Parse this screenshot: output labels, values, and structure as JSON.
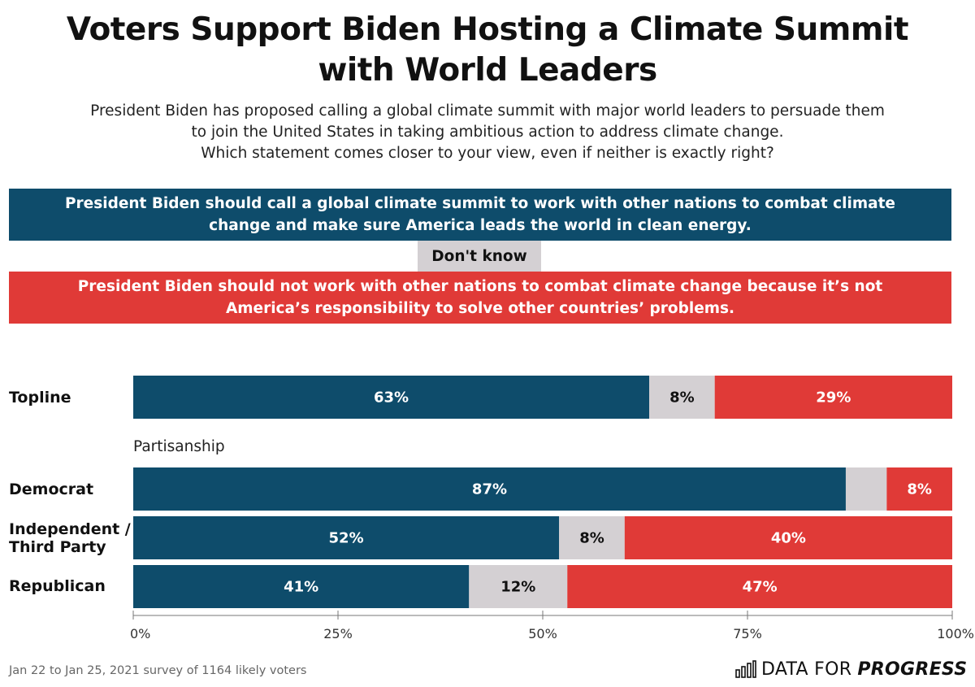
{
  "title": "Voters Support Biden Hosting a Climate Summit with World Leaders",
  "subtitle_lines": [
    "President Biden has proposed calling a global climate summit with major world leaders to persuade them",
    "to join the United States in taking ambitious action to address climate change.",
    "Which statement comes closer to your view, even if neither is exactly right?"
  ],
  "legend": {
    "support": "President Biden should call a global climate summit to work with other nations to combat climate change and make sure America leads the world in clean energy.",
    "dont_know": "Don't know",
    "oppose": "President Biden should not work with other nations to combat climate change because it’s not America’s responsibility to solve other countries’ problems."
  },
  "group_label": "Partisanship",
  "footer": {
    "note": "Jan 22 to Jan 25, 2021 survey of 1164 likely voters",
    "brand_regular": "DATA FOR",
    "brand_bold": "PROGRESS"
  },
  "colors": {
    "support": "#0e4c6b",
    "dont_know": "#d4d0d3",
    "oppose": "#e03a37"
  },
  "chart_data": {
    "type": "bar",
    "orientation": "horizontal",
    "stacked": true,
    "categories": [
      "Topline",
      "Democrat",
      "Independent / Third Party",
      "Republican"
    ],
    "series": [
      {
        "name": "President Biden should call a global climate summit to work with other nations to combat climate change and make sure America leads the world in clean energy.",
        "values": [
          63,
          87,
          52,
          41
        ],
        "labels": [
          "63%",
          "87%",
          "52%",
          "41%"
        ]
      },
      {
        "name": "Don't know",
        "values": [
          8,
          5,
          8,
          12
        ],
        "labels": [
          "8%",
          "",
          "8%",
          "12%"
        ]
      },
      {
        "name": "President Biden should not work with other nations to combat climate change because it’s not America’s responsibility to solve other countries’ problems.",
        "values": [
          29,
          8,
          40,
          47
        ],
        "labels": [
          "29%",
          "8%",
          "40%",
          "47%"
        ]
      }
    ],
    "xlim": [
      0,
      100
    ],
    "xticks": [
      "0%",
      "25%",
      "50%",
      "75%",
      "100%"
    ],
    "grid": false,
    "legend": "top"
  }
}
